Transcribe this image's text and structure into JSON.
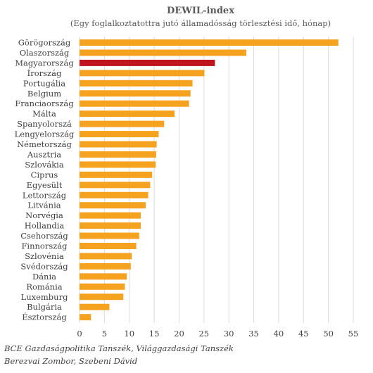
{
  "chart_data": {
    "type": "bar",
    "orientation": "horizontal",
    "title": "DEWIL-index",
    "subtitle": "(Egy foglalkoztatottra jutó államadósság törlesztési idő, hónap)",
    "categories": [
      "Görögország",
      "Olaszország",
      "Magyarország",
      "Írország",
      "Portugália",
      "Belgium",
      "Franciaország",
      "Málta",
      "Spanyolorszá",
      "Lengyelország",
      "Németország",
      "Ausztria",
      "Szlovákia",
      "Ciprus",
      "Egyesült",
      "Lettország",
      "Litvánia",
      "Norvégia",
      "Hollandia",
      "Csehország",
      "Finnország",
      "Szlovénia",
      "Svédország",
      "Dánia",
      "Románia",
      "Luxemburg",
      "Bulgária",
      "Észtország"
    ],
    "values": [
      52,
      33.5,
      27.2,
      25.1,
      22.7,
      22.3,
      22.0,
      19.1,
      17.0,
      15.9,
      15.5,
      15.4,
      15.3,
      14.6,
      14.2,
      13.8,
      13.3,
      12.3,
      12.3,
      12.0,
      11.4,
      10.5,
      10.3,
      9.5,
      9.1,
      8.8,
      6.0,
      2.3
    ],
    "highlight": "Magyarország",
    "xlim": [
      0,
      55
    ],
    "xticks": [
      0,
      5,
      10,
      15,
      20,
      25,
      30,
      35,
      40,
      45,
      50,
      55
    ],
    "grid": true,
    "legend": "none",
    "colors": {
      "bar": "#f5a31e",
      "highlight": "#c0151e",
      "grid": "#dcdcdc"
    }
  },
  "source": {
    "line1": "BCE Gazdaságpolitika Tanszék, Világgazdasági Tanszék",
    "line2": "Berezvai Zombor, Szebeni Dávid"
  }
}
